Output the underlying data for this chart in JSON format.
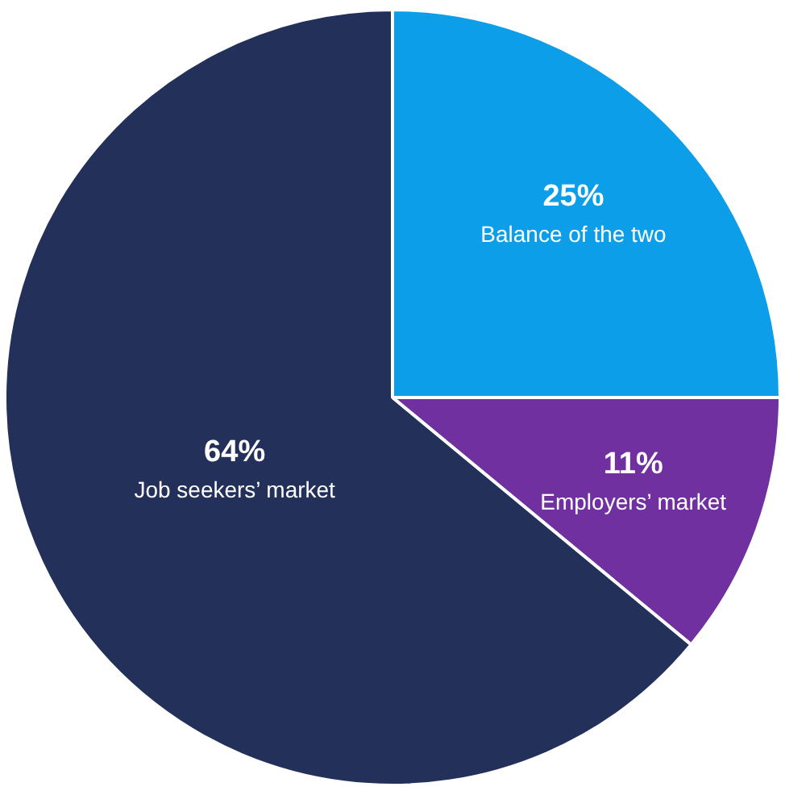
{
  "chart_data": {
    "type": "pie",
    "categories": [
      "Balance of the two",
      "Employers’ market",
      "Job seekers’ market"
    ],
    "values": [
      25,
      11,
      64
    ],
    "colors": [
      "#0c9ee8",
      "#7030a0",
      "#22305a"
    ],
    "value_labels": [
      "25%",
      "11%",
      "64%"
    ],
    "legend": false
  }
}
